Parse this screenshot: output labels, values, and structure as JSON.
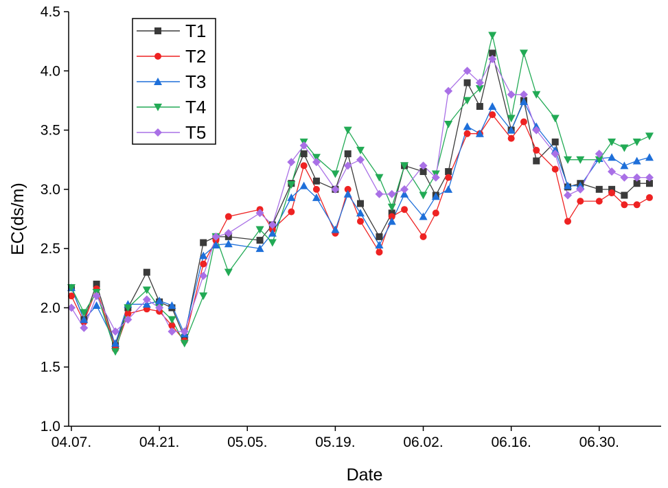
{
  "chart_data": {
    "type": "line",
    "xlabel": "Date",
    "ylabel": "EC(ds/m)",
    "ylim": [
      1.0,
      4.5
    ],
    "yticks": [
      "1.0",
      "1.5",
      "2.0",
      "2.5",
      "3.0",
      "3.5",
      "4.0",
      "4.5"
    ],
    "xlim": [
      "04.07.",
      "07.08."
    ],
    "xticks": [
      "04.07.",
      "04.21.",
      "05.05.",
      "05.19.",
      "06.02.",
      "06.16.",
      "06.30."
    ],
    "grid": false,
    "legend_position": "top-left",
    "x": [
      "04.07.",
      "04.09.",
      "04.11.",
      "04.14.",
      "04.16.",
      "04.19.",
      "04.21.",
      "04.23.",
      "04.25.",
      "04.28.",
      "04.30.",
      "05.02.",
      "05.07.",
      "05.09.",
      "05.12.",
      "05.14.",
      "05.16.",
      "05.19.",
      "05.21.",
      "05.23.",
      "05.26.",
      "05.28.",
      "05.30.",
      "06.02.",
      "06.04.",
      "06.06.",
      "06.09.",
      "06.11.",
      "06.13.",
      "06.16.",
      "06.18.",
      "06.20.",
      "06.23.",
      "06.25.",
      "06.27.",
      "06.30.",
      "07.02.",
      "07.04.",
      "07.06.",
      "07.08."
    ],
    "series": [
      {
        "name": "T1",
        "color": "#3a3a3a",
        "marker": "square",
        "values": [
          2.17,
          1.9,
          2.2,
          1.68,
          2.0,
          2.3,
          2.05,
          2.0,
          1.75,
          2.55,
          2.6,
          2.6,
          2.57,
          2.7,
          3.05,
          3.3,
          3.07,
          3.0,
          3.3,
          2.88,
          2.6,
          2.8,
          3.2,
          3.15,
          2.95,
          3.15,
          3.9,
          3.7,
          4.15,
          3.5,
          3.75,
          3.24,
          3.4,
          3.02,
          3.05,
          3.0,
          3.0,
          2.95,
          3.05,
          3.05
        ]
      },
      {
        "name": "T2",
        "color": "#ee2222",
        "marker": "circle",
        "values": [
          2.1,
          1.88,
          2.16,
          1.65,
          1.95,
          1.99,
          1.97,
          1.85,
          1.72,
          2.37,
          2.57,
          2.77,
          2.83,
          2.66,
          2.81,
          3.2,
          3.0,
          2.63,
          3.0,
          2.73,
          2.47,
          2.77,
          2.83,
          2.6,
          2.8,
          3.1,
          3.47,
          3.47,
          3.63,
          3.43,
          3.57,
          3.33,
          3.17,
          2.73,
          2.9,
          2.9,
          2.97,
          2.87,
          2.87,
          2.93
        ]
      },
      {
        "name": "T3",
        "color": "#1e6fd9",
        "marker": "triangle-up",
        "values": [
          2.17,
          1.9,
          2.02,
          1.7,
          2.03,
          2.03,
          2.06,
          2.02,
          1.78,
          2.44,
          2.53,
          2.54,
          2.5,
          2.63,
          2.93,
          3.03,
          2.93,
          2.66,
          2.96,
          2.8,
          2.53,
          2.73,
          2.96,
          2.77,
          2.94,
          3.0,
          3.53,
          3.47,
          3.7,
          3.5,
          3.74,
          3.53,
          3.33,
          3.03,
          3.03,
          3.26,
          3.27,
          3.2,
          3.24,
          3.27
        ]
      },
      {
        "name": "T4",
        "color": "#22aa55",
        "marker": "triangle-down",
        "values": [
          2.17,
          1.96,
          2.13,
          1.63,
          2.0,
          2.15,
          2.0,
          1.9,
          1.7,
          2.1,
          2.6,
          2.3,
          2.66,
          2.55,
          3.04,
          3.4,
          3.27,
          3.13,
          3.5,
          3.33,
          3.1,
          2.85,
          3.2,
          2.95,
          3.13,
          3.55,
          3.75,
          3.85,
          4.3,
          3.6,
          4.15,
          3.8,
          3.6,
          3.25,
          3.25,
          3.25,
          3.4,
          3.35,
          3.4,
          3.45
        ]
      },
      {
        "name": "T5",
        "color": "#a970e6",
        "marker": "diamond",
        "values": [
          2.0,
          1.83,
          2.1,
          1.8,
          1.9,
          2.07,
          2.0,
          1.8,
          1.8,
          2.27,
          2.6,
          2.63,
          2.8,
          2.7,
          3.23,
          3.37,
          3.23,
          3.0,
          3.2,
          3.25,
          2.96,
          2.96,
          3.0,
          3.2,
          3.1,
          3.83,
          4.0,
          3.9,
          4.1,
          3.8,
          3.8,
          3.5,
          3.3,
          2.95,
          3.0,
          3.3,
          3.15,
          3.1,
          3.1,
          3.1
        ]
      }
    ]
  }
}
